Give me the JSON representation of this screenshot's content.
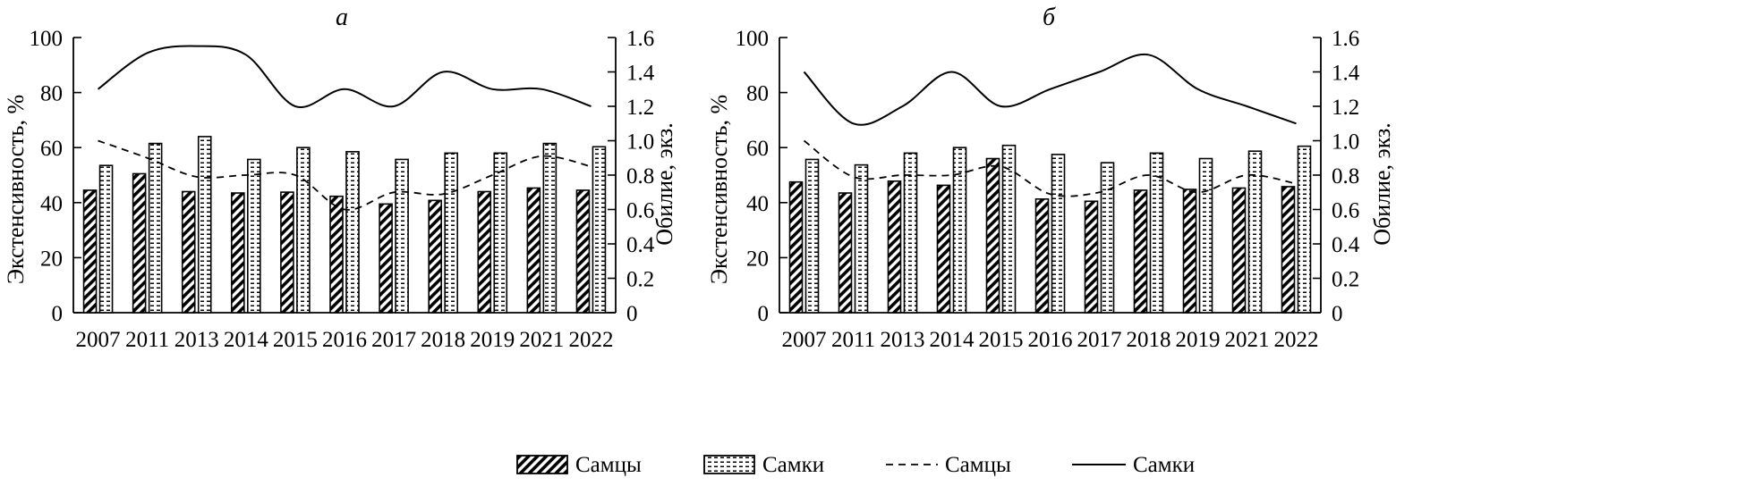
{
  "figure": {
    "legend": {
      "items": [
        {
          "label": "Самцы",
          "kind": "bar-hatched"
        },
        {
          "label": "Самки",
          "kind": "bar-dashed"
        },
        {
          "label": "Самцы",
          "kind": "line-dashed"
        },
        {
          "label": "Самки",
          "kind": "line-solid"
        }
      ]
    }
  },
  "chart_data": [
    {
      "type": "bar",
      "title": "а",
      "categories": [
        "2007",
        "2011",
        "2013",
        "2014",
        "2015",
        "2016",
        "2017",
        "2018",
        "2019",
        "2021",
        "2022"
      ],
      "ylabel": "Экстенсивность, %",
      "ylim": [
        0,
        100
      ],
      "yticks": [
        "0",
        "20",
        "40",
        "60",
        "80",
        "100"
      ],
      "y2label": "Обилие, экз.",
      "y2lim": [
        0,
        1.6
      ],
      "y2ticks": [
        "0",
        "0.2",
        "0.4",
        "0.6",
        "0.8",
        "1.0",
        "1.2",
        "1.4",
        "1.6"
      ],
      "series": [
        {
          "name": "Самцы",
          "kind": "bar",
          "axis": "left",
          "values": [
            44.5,
            50.5,
            44,
            43.5,
            43.8,
            42.3,
            39.5,
            40.8,
            44,
            45.3,
            44.5
          ]
        },
        {
          "name": "Самки",
          "kind": "bar",
          "axis": "left",
          "values": [
            53.5,
            61.5,
            64,
            55.7,
            60,
            58.5,
            55.7,
            58,
            58,
            61.5,
            60.3
          ]
        },
        {
          "name": "Самцы",
          "kind": "line-dashed",
          "axis": "right",
          "values": [
            1.0,
            0.9,
            0.79,
            0.8,
            0.8,
            0.6,
            0.7,
            0.69,
            0.8,
            0.91,
            0.85
          ]
        },
        {
          "name": "Самки",
          "kind": "line-solid",
          "axis": "right",
          "values": [
            1.3,
            1.51,
            1.55,
            1.5,
            1.2,
            1.3,
            1.2,
            1.4,
            1.3,
            1.3,
            1.2
          ]
        }
      ]
    },
    {
      "type": "bar",
      "title": "б",
      "categories": [
        "2007",
        "2011",
        "2013",
        "2014",
        "2015",
        "2016",
        "2017",
        "2018",
        "2019",
        "2021",
        "2022"
      ],
      "ylabel": "Экстенсивность, %",
      "ylim": [
        0,
        100
      ],
      "yticks": [
        "0",
        "20",
        "40",
        "60",
        "80",
        "100"
      ],
      "y2label": "Обилие, экз.",
      "y2lim": [
        0,
        1.6
      ],
      "y2ticks": [
        "0",
        "0.2",
        "0.4",
        "0.6",
        "0.8",
        "1.0",
        "1.2",
        "1.4",
        "1.6"
      ],
      "series": [
        {
          "name": "Самцы",
          "kind": "bar",
          "axis": "left",
          "values": [
            47.5,
            43.5,
            47.8,
            46.3,
            56,
            41.3,
            40.5,
            44.5,
            44.8,
            45.3,
            45.8
          ]
        },
        {
          "name": "Самки",
          "kind": "bar",
          "axis": "left",
          "values": [
            55.7,
            53.7,
            58,
            60,
            60.8,
            57.5,
            54.5,
            58,
            56,
            58.7,
            60.5
          ]
        },
        {
          "name": "Самцы",
          "kind": "line-dashed",
          "axis": "right",
          "values": [
            1.0,
            0.79,
            0.8,
            0.8,
            0.85,
            0.69,
            0.7,
            0.8,
            0.7,
            0.8,
            0.75
          ]
        },
        {
          "name": "Самки",
          "kind": "line-solid",
          "axis": "right",
          "values": [
            1.4,
            1.1,
            1.2,
            1.4,
            1.2,
            1.3,
            1.4,
            1.5,
            1.3,
            1.2,
            1.1
          ]
        }
      ]
    }
  ]
}
